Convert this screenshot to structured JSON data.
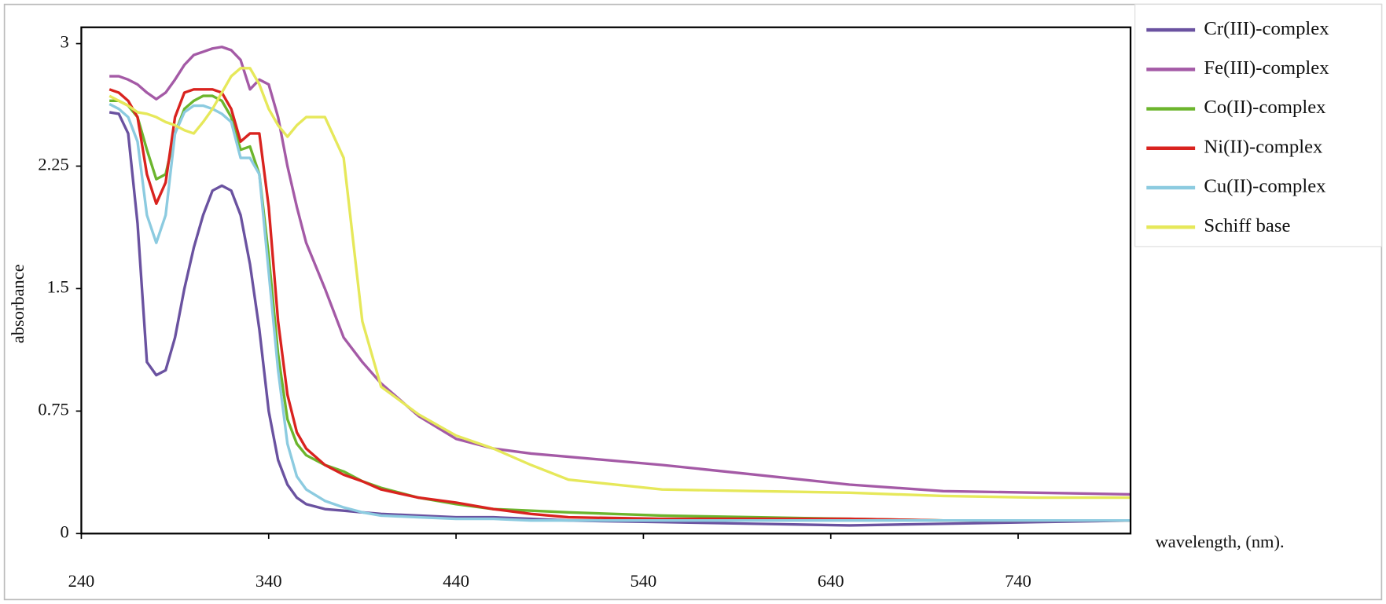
{
  "chart_data": {
    "type": "line",
    "x_label": "wavelength, (nm).",
    "y_label": "absorbance",
    "x": [
      255,
      260,
      265,
      270,
      275,
      280,
      285,
      290,
      295,
      300,
      305,
      310,
      315,
      320,
      325,
      330,
      335,
      340,
      345,
      350,
      355,
      360,
      370,
      380,
      390,
      400,
      420,
      440,
      460,
      480,
      500,
      550,
      600,
      650,
      700,
      750,
      800
    ],
    "series": [
      {
        "name": "Cr(III)-complex",
        "color": "#6a52a0",
        "values": [
          2.58,
          2.57,
          2.45,
          1.9,
          1.05,
          0.97,
          1.0,
          1.2,
          1.5,
          1.75,
          1.95,
          2.1,
          2.13,
          2.1,
          1.95,
          1.65,
          1.25,
          0.75,
          0.45,
          0.3,
          0.22,
          0.18,
          0.15,
          0.14,
          0.13,
          0.12,
          0.11,
          0.1,
          0.1,
          0.09,
          0.08,
          0.07,
          0.06,
          0.05,
          0.06,
          0.07,
          0.08
        ]
      },
      {
        "name": "Fe(III)-complex",
        "color": "#a45aa6",
        "values": [
          2.8,
          2.8,
          2.78,
          2.75,
          2.7,
          2.66,
          2.7,
          2.78,
          2.87,
          2.93,
          2.95,
          2.97,
          2.98,
          2.96,
          2.9,
          2.72,
          2.78,
          2.75,
          2.55,
          2.25,
          2.0,
          1.78,
          1.5,
          1.2,
          1.05,
          0.92,
          0.72,
          0.58,
          0.52,
          0.49,
          0.47,
          0.42,
          0.36,
          0.3,
          0.26,
          0.25,
          0.24
        ]
      },
      {
        "name": "Co(II)-complex",
        "color": "#6cb52d",
        "values": [
          2.65,
          2.65,
          2.62,
          2.55,
          2.35,
          2.17,
          2.2,
          2.45,
          2.6,
          2.65,
          2.68,
          2.68,
          2.65,
          2.55,
          2.35,
          2.37,
          2.2,
          1.7,
          1.1,
          0.7,
          0.55,
          0.48,
          0.42,
          0.38,
          0.32,
          0.28,
          0.22,
          0.18,
          0.15,
          0.14,
          0.13,
          0.11,
          0.1,
          0.09,
          0.08,
          0.08,
          0.08
        ]
      },
      {
        "name": "Ni(II)-complex",
        "color": "#d9231f",
        "values": [
          2.72,
          2.7,
          2.65,
          2.55,
          2.2,
          2.02,
          2.15,
          2.55,
          2.7,
          2.72,
          2.72,
          2.72,
          2.7,
          2.6,
          2.4,
          2.45,
          2.45,
          2.0,
          1.3,
          0.85,
          0.62,
          0.52,
          0.42,
          0.36,
          0.32,
          0.27,
          0.22,
          0.19,
          0.15,
          0.12,
          0.1,
          0.09,
          0.09,
          0.09,
          0.08,
          0.08,
          0.08
        ]
      },
      {
        "name": "Cu(II)-complex",
        "color": "#8ccbe0",
        "values": [
          2.63,
          2.6,
          2.55,
          2.4,
          1.95,
          1.78,
          1.95,
          2.45,
          2.58,
          2.62,
          2.62,
          2.6,
          2.57,
          2.52,
          2.3,
          2.3,
          2.2,
          1.6,
          1.0,
          0.55,
          0.35,
          0.27,
          0.2,
          0.16,
          0.13,
          0.11,
          0.1,
          0.09,
          0.09,
          0.08,
          0.08,
          0.08,
          0.08,
          0.08,
          0.08,
          0.08,
          0.08
        ]
      },
      {
        "name": "Schiff base",
        "color": "#e6e85a",
        "values": [
          2.68,
          2.65,
          2.62,
          2.58,
          2.57,
          2.55,
          2.52,
          2.5,
          2.47,
          2.45,
          2.52,
          2.6,
          2.7,
          2.8,
          2.85,
          2.85,
          2.75,
          2.6,
          2.5,
          2.43,
          2.5,
          2.55,
          2.55,
          2.3,
          1.3,
          0.9,
          0.73,
          0.6,
          0.52,
          0.42,
          0.33,
          0.27,
          0.26,
          0.25,
          0.23,
          0.22,
          0.22
        ]
      }
    ],
    "xlim": [
      240,
      800
    ],
    "xticks": [
      240,
      340,
      440,
      540,
      640,
      740
    ],
    "ylim": [
      0,
      3.1
    ],
    "yticks": [
      0,
      0.75,
      1.5,
      2.25,
      3
    ],
    "legend": "right"
  }
}
